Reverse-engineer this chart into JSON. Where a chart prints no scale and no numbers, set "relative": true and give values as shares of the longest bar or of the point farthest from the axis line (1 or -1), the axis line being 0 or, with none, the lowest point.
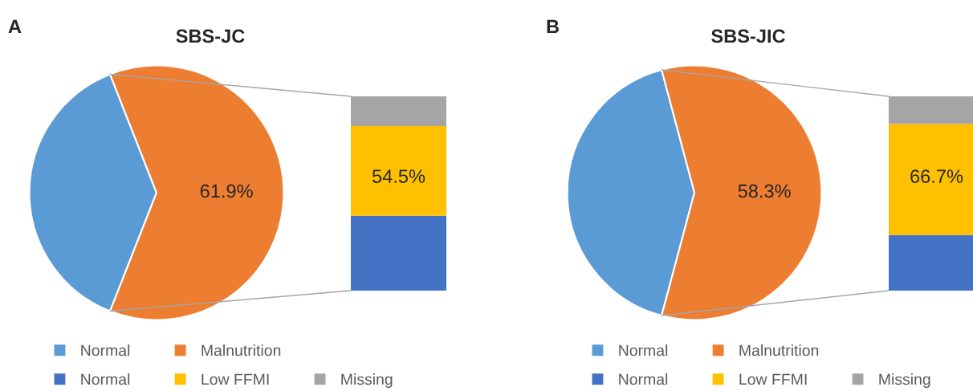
{
  "chart_data": [
    {
      "type": "pie",
      "title": "SBS-JC",
      "annotations": [
        "A"
      ],
      "categories": [
        "Normal",
        "Malnutrition"
      ],
      "values": [
        38.1,
        61.9
      ],
      "colors": [
        "#5b9bd5",
        "#ed7d31"
      ],
      "value_labels": [
        null,
        "61.9%"
      ],
      "legend": "bottom"
    },
    {
      "type": "bar",
      "stacked": true,
      "relative": true,
      "categories": [
        null
      ],
      "series": [
        {
          "name": "Normal",
          "color": "#4472c4",
          "values": [
            0.385
          ]
        },
        {
          "name": "Low FFMI",
          "color": "#ffc000",
          "values": [
            0.462
          ]
        },
        {
          "name": "Missing",
          "color": "#a5a5a5",
          "values": [
            0.153
          ]
        }
      ],
      "annotations": [
        "54.5%"
      ],
      "legend": "bottom"
    },
    {
      "type": "pie",
      "title": "SBS-JIC",
      "annotations": [
        "B"
      ],
      "categories": [
        "Normal",
        "Malnutrition"
      ],
      "values": [
        41.7,
        58.3
      ],
      "colors": [
        "#5b9bd5",
        "#ed7d31"
      ],
      "value_labels": [
        null,
        "58.3%"
      ],
      "legend": "bottom"
    },
    {
      "type": "bar",
      "stacked": true,
      "relative": true,
      "categories": [
        null
      ],
      "series": [
        {
          "name": "Normal",
          "color": "#4472c4",
          "values": [
            0.286
          ]
        },
        {
          "name": "Low FFMI",
          "color": "#ffc000",
          "values": [
            0.571
          ]
        },
        {
          "name": "Missing",
          "color": "#a5a5a5",
          "values": [
            0.143
          ]
        }
      ],
      "annotations": [
        "66.7%"
      ],
      "legend": "bottom"
    }
  ]
}
